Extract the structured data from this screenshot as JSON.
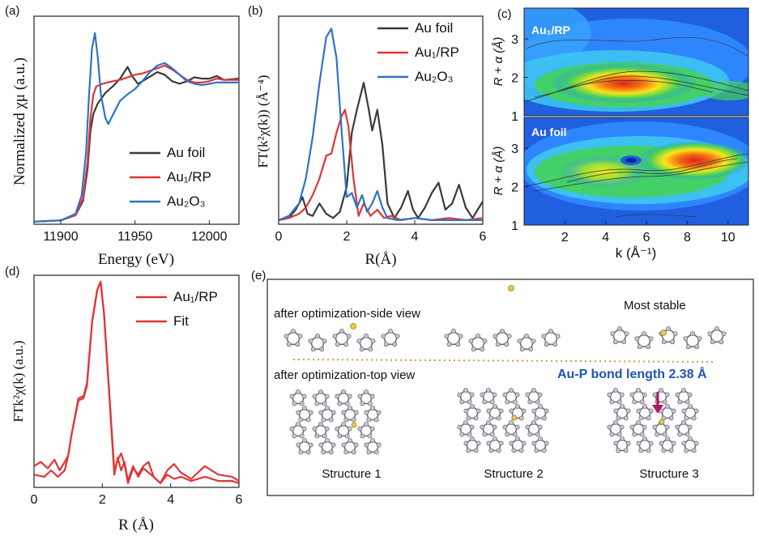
{
  "colors": {
    "au_foil": "#3a3a3a",
    "au1_rp": "#e03535",
    "au2o3": "#2f72c9",
    "fit": "#e03535",
    "divider": "#d89a3a",
    "annotation_blue": "#1f56b3",
    "arrow": "#b0156a"
  },
  "chart_data": [
    {
      "panel": "a",
      "type": "line",
      "xlabel": "Energy (eV)",
      "ylabel": "Normalized χμ (a.u.)",
      "xlim": [
        11882,
        12020
      ],
      "ylim": [
        0,
        1.6
      ],
      "xticks": [
        11900,
        11950,
        12000
      ],
      "legend": [
        "Au foil",
        "Au₁/RP",
        "Au₂O₃"
      ],
      "legend_position": "bottom-right",
      "series": [
        {
          "name": "Au foil",
          "x": [
            11882,
            11900,
            11910,
            11915,
            11918,
            11920,
            11922,
            11925,
            11930,
            11935,
            11940,
            11945,
            11948,
            11952,
            11958,
            11965,
            11970,
            11975,
            11980,
            11985,
            11990,
            11995,
            12000,
            12005,
            12010,
            12020
          ],
          "y": [
            0.02,
            0.03,
            0.07,
            0.18,
            0.42,
            0.72,
            0.85,
            0.93,
            1.01,
            1.06,
            1.12,
            1.21,
            1.14,
            1.08,
            1.12,
            1.17,
            1.15,
            1.1,
            1.08,
            1.1,
            1.13,
            1.12,
            1.12,
            1.14,
            1.11,
            1.12
          ]
        },
        {
          "name": "Au₁/RP",
          "x": [
            11882,
            11900,
            11910,
            11915,
            11918,
            11920,
            11922,
            11924,
            11928,
            11935,
            11940,
            11945,
            11950,
            11955,
            11960,
            11965,
            11970,
            11975,
            11980,
            11985,
            11990,
            11995,
            12000,
            12005,
            12010,
            12020
          ],
          "y": [
            0.02,
            0.03,
            0.07,
            0.2,
            0.48,
            0.82,
            1.0,
            1.06,
            1.08,
            1.1,
            1.11,
            1.13,
            1.15,
            1.16,
            1.18,
            1.2,
            1.22,
            1.19,
            1.15,
            1.11,
            1.09,
            1.09,
            1.1,
            1.12,
            1.11,
            1.11
          ]
        },
        {
          "name": "Au₂O₃",
          "x": [
            11882,
            11900,
            11910,
            11914,
            11917,
            11919,
            11921,
            11923,
            11925,
            11927,
            11930,
            11932,
            11935,
            11940,
            11945,
            11950,
            11955,
            11960,
            11965,
            11970,
            11975,
            11980,
            11985,
            11990,
            11995,
            12000,
            12005,
            12010,
            12020
          ],
          "y": [
            0.02,
            0.03,
            0.08,
            0.22,
            0.55,
            0.98,
            1.35,
            1.47,
            1.28,
            1.0,
            0.82,
            0.77,
            0.84,
            0.95,
            1.0,
            1.04,
            1.1,
            1.17,
            1.22,
            1.24,
            1.2,
            1.15,
            1.1,
            1.08,
            1.07,
            1.08,
            1.09,
            1.09,
            1.09
          ]
        }
      ]
    },
    {
      "panel": "b",
      "type": "line",
      "xlabel": "R(Å)",
      "ylabel": "FT(k²χ(k)) (Å⁻⁴)",
      "xlim": [
        0,
        6
      ],
      "ylim": [
        0,
        1.0
      ],
      "xticks": [
        0,
        2,
        4,
        6
      ],
      "legend": [
        "Au foil",
        "Au₁/RP",
        "Au₂O₃"
      ],
      "legend_position": "top-right",
      "series": [
        {
          "name": "Au foil",
          "x": [
            0,
            0.3,
            0.5,
            0.7,
            0.85,
            1.0,
            1.2,
            1.4,
            1.6,
            1.8,
            2.0,
            2.15,
            2.3,
            2.5,
            2.65,
            2.75,
            2.9,
            3.05,
            3.2,
            3.4,
            3.6,
            3.8,
            3.95,
            4.1,
            4.3,
            4.5,
            4.7,
            4.9,
            5.1,
            5.3,
            5.5,
            5.7,
            5.85,
            6.0
          ],
          "y": [
            0.02,
            0.03,
            0.07,
            0.13,
            0.05,
            0.04,
            0.1,
            0.05,
            0.03,
            0.06,
            0.18,
            0.44,
            0.55,
            0.68,
            0.55,
            0.45,
            0.55,
            0.38,
            0.1,
            0.03,
            0.08,
            0.16,
            0.07,
            0.03,
            0.08,
            0.15,
            0.2,
            0.07,
            0.1,
            0.19,
            0.08,
            0.03,
            0.07,
            0.11
          ]
        },
        {
          "name": "Au₁/RP",
          "x": [
            0,
            0.3,
            0.6,
            0.8,
            1.0,
            1.2,
            1.4,
            1.55,
            1.7,
            1.85,
            1.95,
            2.05,
            2.2,
            2.35,
            2.5,
            2.7,
            2.9,
            3.1,
            3.3,
            3.6,
            4.0,
            4.5,
            5.0,
            5.5,
            6.0
          ],
          "y": [
            0.02,
            0.03,
            0.05,
            0.08,
            0.14,
            0.22,
            0.33,
            0.34,
            0.44,
            0.52,
            0.55,
            0.47,
            0.22,
            0.04,
            0.1,
            0.04,
            0.07,
            0.03,
            0.04,
            0.02,
            0.03,
            0.02,
            0.03,
            0.02,
            0.03
          ]
        },
        {
          "name": "Au₂O₃",
          "x": [
            0,
            0.3,
            0.6,
            0.8,
            1.0,
            1.2,
            1.4,
            1.55,
            1.7,
            1.85,
            2.0,
            2.15,
            2.3,
            2.45,
            2.6,
            2.75,
            2.9,
            3.05,
            3.2,
            3.5,
            4.0,
            4.5,
            5.0,
            5.5,
            6.0
          ],
          "y": [
            0.02,
            0.04,
            0.1,
            0.22,
            0.42,
            0.68,
            0.9,
            0.94,
            0.8,
            0.45,
            0.13,
            0.15,
            0.08,
            0.14,
            0.06,
            0.1,
            0.16,
            0.08,
            0.03,
            0.02,
            0.03,
            0.02,
            0.02,
            0.02,
            0.02
          ]
        }
      ]
    },
    {
      "panel": "c",
      "type": "heatmap",
      "xlabel": "k (Å⁻¹)",
      "ylabel": "R + α (Å)",
      "xlim": [
        0,
        11
      ],
      "ylim": [
        1,
        3.8
      ],
      "xticks": [
        2,
        4,
        6,
        8,
        10
      ],
      "yticks": [
        1,
        2,
        3
      ],
      "subplots": [
        {
          "label": "Au₁/RP",
          "hotspots": [
            {
              "k": 5.8,
              "r": 1.85,
              "intensity": 1.0
            }
          ]
        },
        {
          "label": "Au foil",
          "hotspots": [
            {
              "k": 9.0,
              "r": 2.7,
              "intensity": 1.0
            },
            {
              "k": 4.5,
              "r": 2.4,
              "intensity": 0.75
            }
          ]
        }
      ]
    },
    {
      "panel": "d",
      "type": "line",
      "xlabel": "R (Å)",
      "ylabel": "FTk²χ(k) (a.u.)",
      "xlim": [
        0,
        6
      ],
      "ylim": [
        0,
        1.0
      ],
      "xticks": [
        0,
        2,
        4,
        6
      ],
      "legend": [
        "Au₁/RP",
        "Fit"
      ],
      "legend_position": "top-right",
      "series": [
        {
          "name": "Au₁/RP",
          "x": [
            0,
            0.3,
            0.5,
            0.7,
            0.9,
            1.0,
            1.1,
            1.3,
            1.45,
            1.55,
            1.7,
            1.85,
            1.95,
            2.05,
            2.2,
            2.35,
            2.45,
            2.55,
            2.65,
            2.75,
            2.9,
            3.05,
            3.2,
            3.35,
            3.5,
            3.7,
            3.9,
            4.1,
            4.3,
            4.6,
            5.0,
            5.4,
            5.8,
            6.0
          ],
          "y": [
            0.06,
            0.05,
            0.08,
            0.05,
            0.08,
            0.15,
            0.25,
            0.42,
            0.43,
            0.49,
            0.78,
            0.93,
            0.97,
            0.82,
            0.45,
            0.08,
            0.13,
            0.16,
            0.11,
            0.02,
            0.09,
            0.06,
            0.1,
            0.12,
            0.05,
            0.02,
            0.08,
            0.11,
            0.07,
            0.04,
            0.1,
            0.06,
            0.05,
            0.03
          ]
        },
        {
          "name": "Fit",
          "x": [
            0,
            0.2,
            0.4,
            0.6,
            0.75,
            0.9,
            1.0,
            1.1,
            1.3,
            1.45,
            1.55,
            1.7,
            1.85,
            1.95,
            2.05,
            2.2,
            2.35,
            2.45,
            2.55,
            2.65,
            2.75,
            2.9,
            3.05,
            3.2,
            3.35,
            3.5,
            3.7,
            3.9,
            4.1,
            4.3,
            4.6,
            5.0,
            5.4,
            5.8,
            6.0
          ],
          "y": [
            0.1,
            0.12,
            0.09,
            0.13,
            0.08,
            0.12,
            0.15,
            0.25,
            0.41,
            0.42,
            0.48,
            0.78,
            0.93,
            0.97,
            0.82,
            0.44,
            0.06,
            0.14,
            0.08,
            0.12,
            0.03,
            0.1,
            0.05,
            0.09,
            0.07,
            0.05,
            0.02,
            0.06,
            0.04,
            0.05,
            0.03,
            0.05,
            0.03,
            0.03,
            0.02
          ]
        }
      ]
    }
  ],
  "panel_labels": {
    "a": "(a)",
    "b": "(b)",
    "c": "(c)",
    "d": "(d)",
    "e": "(e)"
  },
  "panel_e": {
    "side_view_label": "after optimization-side view",
    "top_view_label": "after optimization-top view",
    "most_stable_label": "Most stable",
    "bond_length_label": "Au-P bond length 2.38 Å",
    "structures": [
      "Structure 1",
      "Structure 2",
      "Structure 3"
    ]
  }
}
